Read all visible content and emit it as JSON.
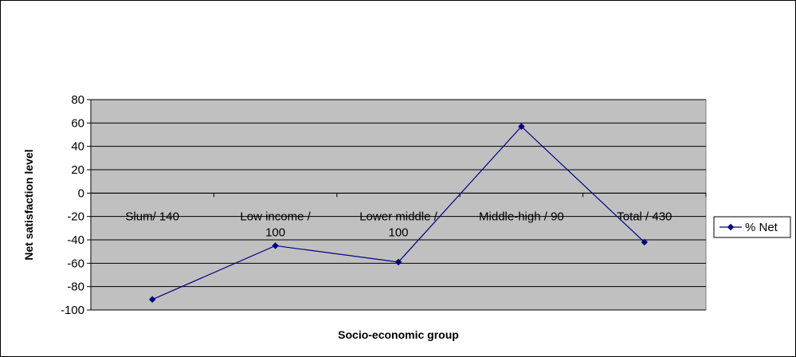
{
  "chart_data": {
    "type": "line",
    "title": "",
    "xlabel": "Socio-economic group",
    "ylabel": "Net satisfaction level",
    "ylim": [
      -100,
      80
    ],
    "yticks": [
      80,
      60,
      40,
      20,
      0,
      -20,
      -40,
      -60,
      -80,
      -100
    ],
    "grid": true,
    "plot_background": "#c0c0c0",
    "legend_position": "right",
    "categories": [
      [
        "Slum/ 140"
      ],
      [
        "Low income /",
        "100"
      ],
      [
        "Lower middle /",
        "100"
      ],
      [
        "Middle-high / 90"
      ],
      [
        "Total / 430"
      ]
    ],
    "series": [
      {
        "name": "% Net",
        "color": "#000080",
        "marker": "diamond",
        "values": [
          -91,
          -45,
          -59,
          57,
          -42
        ]
      }
    ]
  }
}
